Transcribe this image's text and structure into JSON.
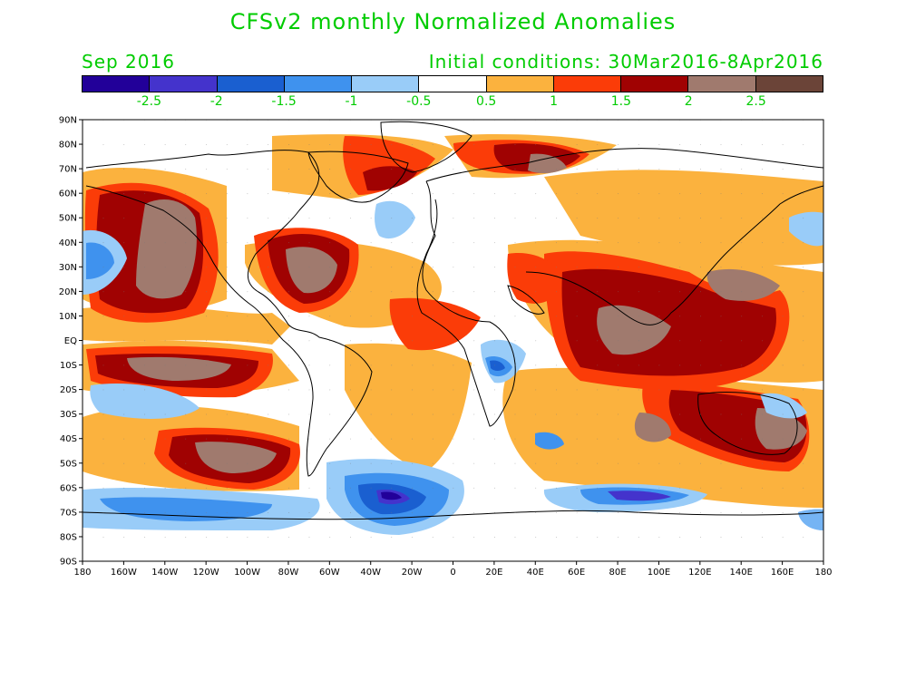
{
  "title": "CFSv2 monthly Normalized Anomalies",
  "month": "Sep 2016",
  "initial_conditions": "Initial conditions: 30Mar2016-8Apr2016",
  "colors": {
    "text": "#00cc00",
    "scale": [
      "#220099",
      "#4433cc",
      "#1a5fd0",
      "#3f92ee",
      "#99ccf8",
      "#ffffff",
      "#fbb23e",
      "#fb3c08",
      "#a00202",
      "#a07a6e",
      "#6b4438"
    ]
  },
  "colorbar_labels": [
    "-2.5",
    "-2",
    "-1.5",
    "-1",
    "-0.5",
    "0.5",
    "1",
    "1.5",
    "2",
    "2.5"
  ],
  "lat_labels": [
    "90N",
    "80N",
    "70N",
    "60N",
    "50N",
    "40N",
    "30N",
    "20N",
    "10N",
    "EQ",
    "10S",
    "20S",
    "30S",
    "40S",
    "50S",
    "60S",
    "70S",
    "80S",
    "90S"
  ],
  "lon_labels": [
    "180",
    "160W",
    "140W",
    "120W",
    "100W",
    "80W",
    "60W",
    "40W",
    "20W",
    "0",
    "20E",
    "40E",
    "60E",
    "80E",
    "100E",
    "120E",
    "140E",
    "160E",
    "180"
  ]
}
